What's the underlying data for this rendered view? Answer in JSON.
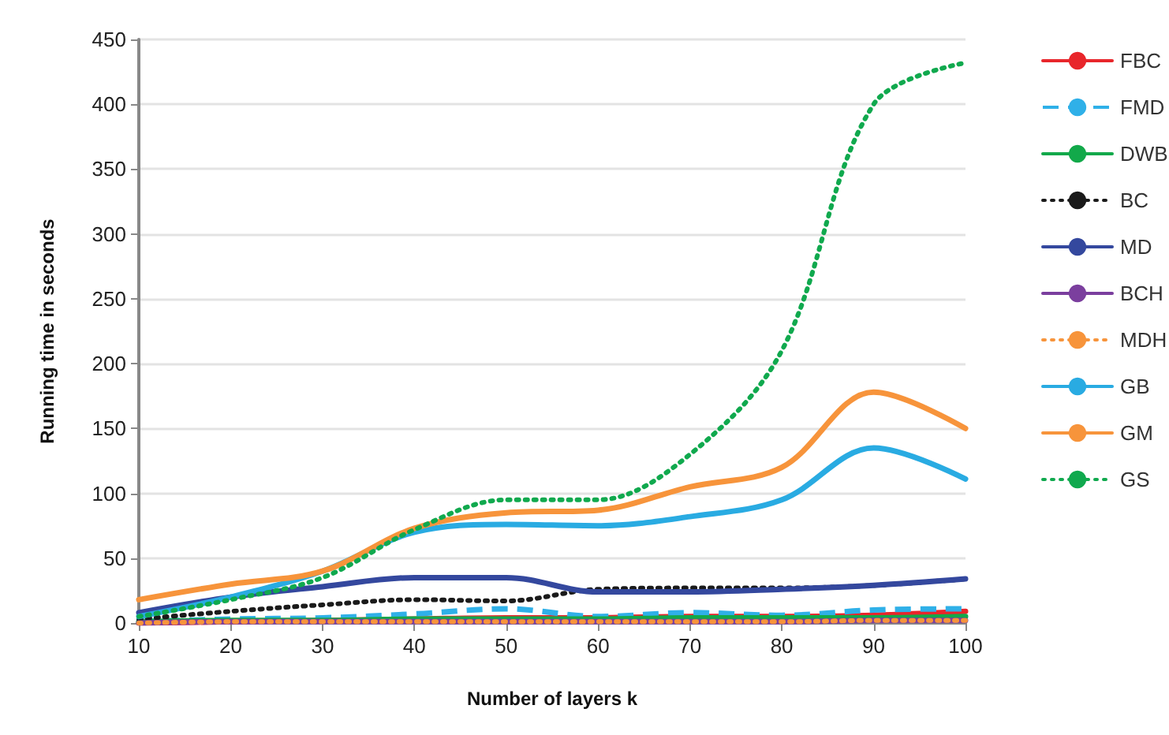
{
  "chart_data": {
    "type": "line",
    "xlabel": "Number of layers k",
    "ylabel": "Running time in seconds",
    "x": [
      10,
      20,
      30,
      40,
      50,
      60,
      70,
      80,
      90,
      100
    ],
    "xlim": [
      10,
      100
    ],
    "xticks": [
      10,
      20,
      30,
      40,
      50,
      60,
      70,
      80,
      90,
      100
    ],
    "ylim": [
      0,
      450
    ],
    "yticks": [
      0,
      50,
      100,
      150,
      200,
      250,
      300,
      350,
      400,
      450
    ],
    "grid": "y",
    "legend": "right",
    "marker": "none",
    "series": [
      {
        "name": "FBC",
        "color": "#e8262b",
        "line_style": "solid",
        "values": [
          0,
          1,
          2,
          3,
          4,
          4,
          5,
          5,
          6,
          9
        ]
      },
      {
        "name": "FMD",
        "color": "#2fb0e8",
        "line_style": "dashed",
        "values": [
          1,
          3,
          4,
          7,
          11,
          5,
          8,
          6,
          10,
          11
        ]
      },
      {
        "name": "DWB",
        "color": "#12a94a",
        "line_style": "solid",
        "values": [
          1,
          2,
          2,
          3,
          3,
          3,
          4,
          4,
          4,
          5
        ]
      },
      {
        "name": "BC",
        "color": "#1a1a1a",
        "line_style": "dotted",
        "values": [
          3,
          9,
          14,
          18,
          17,
          26,
          27,
          27,
          29,
          34
        ]
      },
      {
        "name": "MD",
        "color": "#34489e",
        "line_style": "solid",
        "values": [
          8,
          20,
          28,
          35,
          35,
          24,
          24,
          26,
          29,
          34
        ]
      },
      {
        "name": "BCH",
        "color": "#7b3f9e",
        "line_style": "solid",
        "values": [
          0,
          1,
          1,
          1,
          1,
          1,
          1,
          1,
          2,
          2
        ]
      },
      {
        "name": "MDH",
        "color": "#f7943b",
        "line_style": "dotted",
        "values": [
          0,
          1,
          1,
          1,
          1,
          1,
          1,
          1,
          2,
          2
        ]
      },
      {
        "name": "GB",
        "color": "#29abe2",
        "line_style": "solid",
        "values": [
          5,
          20,
          40,
          70,
          76,
          75,
          82,
          95,
          135,
          111
        ]
      },
      {
        "name": "GM",
        "color": "#f7943b",
        "line_style": "solid",
        "values": [
          18,
          30,
          40,
          73,
          85,
          87,
          105,
          120,
          178,
          150
        ]
      },
      {
        "name": "GS",
        "color": "#10a94e",
        "line_style": "dotted",
        "values": [
          5,
          18,
          35,
          72,
          95,
          95,
          130,
          210,
          400,
          432
        ]
      }
    ]
  }
}
